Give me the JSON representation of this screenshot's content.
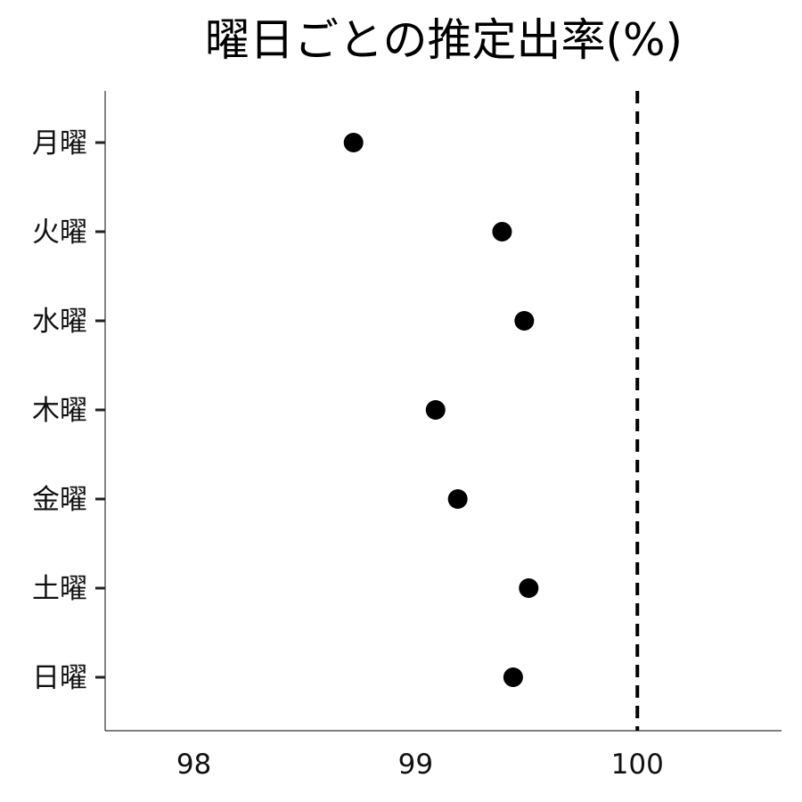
{
  "chart_data": {
    "type": "scatter",
    "title": "曜日ごとの推定出率(%)",
    "xlabel": "",
    "ylabel": "",
    "xlim": [
      97.6,
      100.65
    ],
    "x_ticks": [
      98,
      99,
      100
    ],
    "x_tick_labels": [
      "98",
      "99",
      "100"
    ],
    "categories": [
      "月曜",
      "火曜",
      "水曜",
      "木曜",
      "金曜",
      "土曜",
      "日曜"
    ],
    "values": [
      98.72,
      99.39,
      99.49,
      99.09,
      99.19,
      99.51,
      99.44
    ],
    "reference_line": {
      "x": 100,
      "style": "dashed"
    },
    "grid": false,
    "legend": "none"
  }
}
